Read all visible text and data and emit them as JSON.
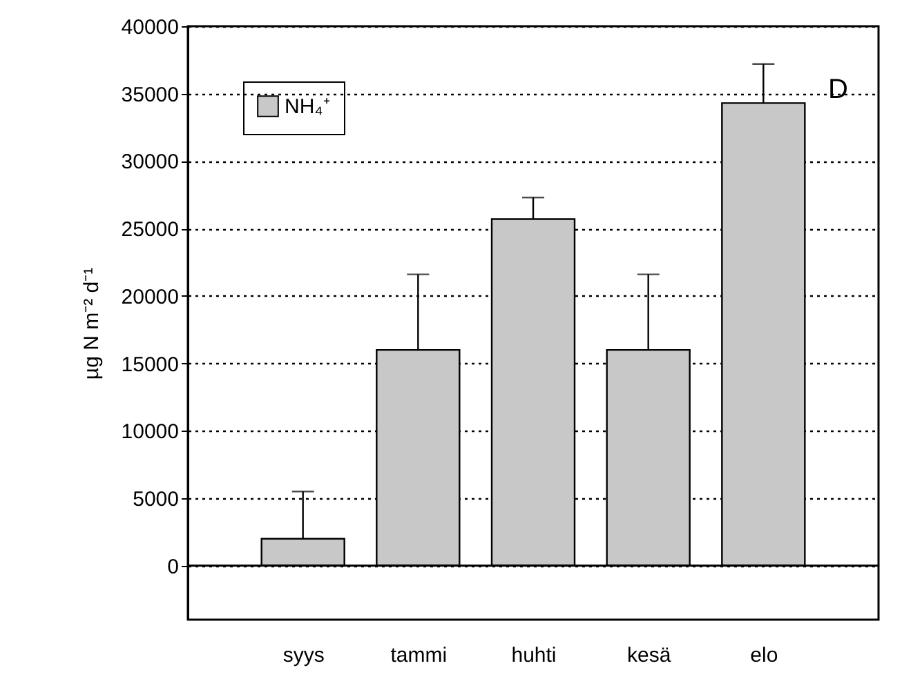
{
  "chart_data": {
    "type": "bar",
    "ylabel": "µg N m⁻² d⁻¹",
    "categories": [
      "syys",
      "tammi",
      "huhti",
      "kesä",
      "elo"
    ],
    "series": [
      {
        "name": "NH₄⁺",
        "color": "#c8c8c8",
        "values": [
          2000,
          16000,
          25700,
          16000,
          34300
        ],
        "errors": [
          [
            2000,
            5500
          ],
          [
            16000,
            21600
          ],
          [
            25700,
            27300
          ],
          [
            16000,
            21600
          ],
          [
            34300,
            37200
          ]
        ]
      }
    ],
    "ylim": [
      -4000,
      40000
    ],
    "yticks": [
      0,
      5000,
      10000,
      15000,
      20000,
      25000,
      30000,
      35000,
      40000
    ],
    "grid": "y",
    "legend": "top left",
    "ref_lines": [
      {
        "axis": "y",
        "value": 0,
        "color": "#000000",
        "line_style": "solid"
      }
    ],
    "annotations": [
      "D"
    ]
  }
}
